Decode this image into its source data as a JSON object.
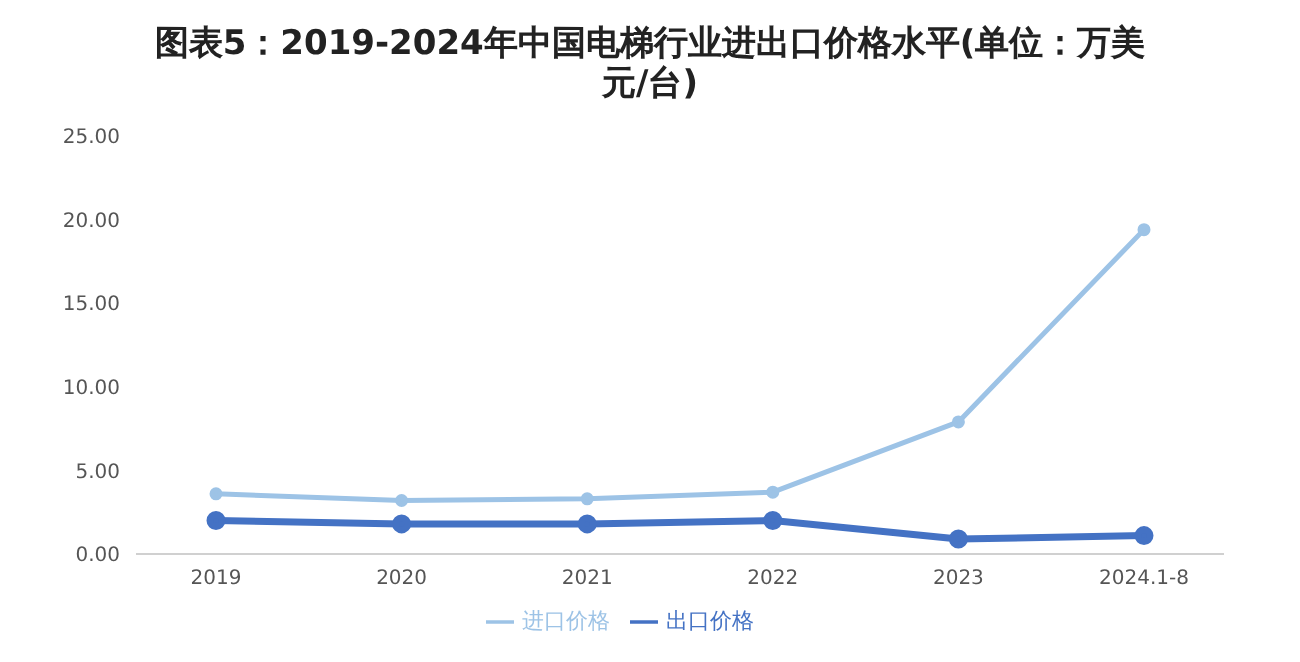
{
  "chart_data": {
    "type": "line",
    "title": "图表5：2019-2024年中国电梯行业进出口价格水平(单位：万美元/台)",
    "categories": [
      "2019",
      "2020",
      "2021",
      "2022",
      "2023",
      "2024.1-8"
    ],
    "series": [
      {
        "name": "进口价格",
        "color": "#9dc3e6",
        "values": [
          3.6,
          3.2,
          3.3,
          3.7,
          7.9,
          19.4
        ]
      },
      {
        "name": "出口价格",
        "color": "#4472c4",
        "values": [
          2.0,
          1.8,
          1.8,
          2.0,
          0.9,
          1.1
        ]
      }
    ],
    "ylim": [
      0,
      25
    ],
    "yticks": [
      {
        "value": 0,
        "label": "0.00"
      },
      {
        "value": 5,
        "label": "5.00"
      },
      {
        "value": 10,
        "label": "10.00"
      },
      {
        "value": 15,
        "label": "15.00"
      },
      {
        "value": 20,
        "label": "20.00"
      },
      {
        "value": 25,
        "label": "25.00"
      }
    ],
    "grid": false,
    "legend": "bottom",
    "marker": "circle",
    "line_style": "solid"
  }
}
